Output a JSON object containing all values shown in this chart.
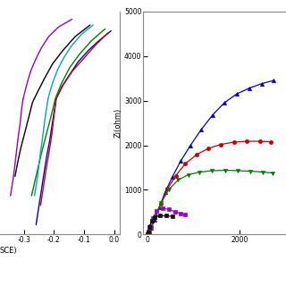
{
  "tafel": {
    "xlim": [
      -0.38,
      0.02
    ],
    "ylim": [
      -7,
      4.5
    ],
    "xlabel": "SCE)",
    "xticks": [
      -0.3,
      -0.2,
      -0.1,
      0.0
    ],
    "xticklabels": [
      "-0.3",
      "-0.2",
      "-0.1",
      "0.0"
    ],
    "curves": [
      {
        "color": "#0000cd",
        "cat_x": [
          -0.26,
          -0.245,
          -0.235,
          -0.225,
          -0.215,
          -0.208,
          -0.202,
          -0.197,
          -0.193
        ],
        "cat_y": [
          -6.5,
          -5.0,
          -4.0,
          -3.0,
          -2.2,
          -1.5,
          -0.9,
          -0.4,
          0.0
        ],
        "ano_x": [
          -0.193,
          -0.175,
          -0.15,
          -0.12,
          -0.085,
          -0.05,
          -0.01
        ],
        "ano_y": [
          0.0,
          0.6,
          1.2,
          1.9,
          2.5,
          3.0,
          3.5
        ]
      },
      {
        "color": "#cc0000",
        "cat_x": [
          -0.245,
          -0.235,
          -0.225,
          -0.215,
          -0.207,
          -0.202,
          -0.197,
          -0.193
        ],
        "cat_y": [
          -5.5,
          -4.5,
          -3.5,
          -2.6,
          -1.8,
          -1.1,
          -0.5,
          0.0
        ],
        "ano_x": [
          -0.193,
          -0.17,
          -0.14,
          -0.1,
          -0.06,
          -0.02
        ],
        "ano_y": [
          0.0,
          0.7,
          1.4,
          2.1,
          2.8,
          3.4
        ]
      },
      {
        "color": "#008000",
        "cat_x": [
          -0.275,
          -0.26,
          -0.245,
          -0.232,
          -0.22,
          -0.21,
          -0.202,
          -0.196
        ],
        "cat_y": [
          -5.0,
          -4.0,
          -3.0,
          -2.2,
          -1.5,
          -0.9,
          -0.4,
          0.0
        ],
        "ano_x": [
          -0.196,
          -0.175,
          -0.148,
          -0.115,
          -0.075,
          -0.03
        ],
        "ano_y": [
          0.0,
          0.8,
          1.6,
          2.3,
          3.0,
          3.6
        ]
      },
      {
        "color": "#000000",
        "cat_x": [
          -0.33,
          -0.32,
          -0.31,
          -0.3,
          -0.29,
          -0.28,
          -0.272,
          -0.266
        ],
        "cat_y": [
          -4.0,
          -3.2,
          -2.5,
          -1.9,
          -1.3,
          -0.7,
          -0.2,
          0.0
        ],
        "ano_x": [
          -0.266,
          -0.25,
          -0.23,
          -0.205,
          -0.17,
          -0.13,
          -0.08
        ],
        "ano_y": [
          0.0,
          0.5,
          1.1,
          1.8,
          2.5,
          3.2,
          3.8
        ]
      },
      {
        "color": "#9900cc",
        "cat_x": [
          -0.345,
          -0.335,
          -0.328,
          -0.322,
          -0.316,
          -0.311,
          -0.307,
          -0.303
        ],
        "cat_y": [
          -5.0,
          -4.0,
          -3.1,
          -2.3,
          -1.6,
          -1.0,
          -0.4,
          0.0
        ],
        "ano_x": [
          -0.303,
          -0.298,
          -0.293,
          -0.286,
          -0.276,
          -0.262,
          -0.243,
          -0.218,
          -0.185,
          -0.14
        ],
        "ano_y": [
          0.0,
          0.3,
          0.6,
          1.0,
          1.5,
          2.0,
          2.6,
          3.2,
          3.7,
          4.1
        ]
      },
      {
        "color": "#00aaaa",
        "cat_x": [
          -0.265,
          -0.255,
          -0.247,
          -0.24,
          -0.234,
          -0.229,
          -0.224,
          -0.22
        ],
        "cat_y": [
          -5.0,
          -4.0,
          -3.0,
          -2.2,
          -1.5,
          -0.9,
          -0.4,
          0.0
        ],
        "ano_x": [
          -0.22,
          -0.213,
          -0.203,
          -0.188,
          -0.168,
          -0.143,
          -0.11,
          -0.07
        ],
        "ano_y": [
          0.0,
          0.4,
          0.9,
          1.5,
          2.1,
          2.7,
          3.3,
          3.8
        ]
      }
    ]
  },
  "nyquist": {
    "ylabel": "Zi(ohm)",
    "xlim": [
      -100,
      3000
    ],
    "ylim": [
      0,
      5000
    ],
    "xticks": [
      0,
      2000
    ],
    "yticks": [
      0,
      1000,
      2000,
      3000,
      4000,
      5000
    ],
    "curves": [
      {
        "color": "#0000cd",
        "marker": "^",
        "x": [
          0,
          30,
          80,
          150,
          250,
          380,
          540,
          720,
          930,
          1160,
          1410,
          1660,
          1930,
          2200,
          2470,
          2720
        ],
        "y": [
          0,
          50,
          150,
          330,
          600,
          950,
          1300,
          1650,
          2000,
          2350,
          2680,
          2950,
          3150,
          3280,
          3380,
          3450
        ]
      },
      {
        "color": "#cc0000",
        "marker": "o",
        "x": [
          0,
          30,
          80,
          160,
          280,
          430,
          610,
          820,
          1060,
          1320,
          1590,
          1870,
          2150,
          2440,
          2680
        ],
        "y": [
          0,
          50,
          160,
          380,
          680,
          1020,
          1320,
          1590,
          1790,
          1930,
          2020,
          2070,
          2090,
          2090,
          2080
        ]
      },
      {
        "color": "#008000",
        "marker": "v",
        "x": [
          0,
          30,
          80,
          165,
          295,
          460,
          660,
          880,
          1130,
          1400,
          1680,
          1960,
          2230,
          2490,
          2700
        ],
        "y": [
          0,
          50,
          165,
          400,
          710,
          1010,
          1220,
          1340,
          1400,
          1430,
          1440,
          1430,
          1420,
          1400,
          1380
        ]
      },
      {
        "color": "#9900cc",
        "marker": "s",
        "x": [
          0,
          20,
          55,
          110,
          200,
          320,
          460,
          600,
          720,
          820
        ],
        "y": [
          0,
          60,
          180,
          360,
          530,
          590,
          560,
          510,
          470,
          440
        ]
      },
      {
        "color": "#111111",
        "marker": "s",
        "x": [
          0,
          15,
          40,
          85,
          160,
          270,
          400,
          530
        ],
        "y": [
          0,
          55,
          165,
          310,
          390,
          420,
          420,
          410
        ]
      }
    ]
  }
}
